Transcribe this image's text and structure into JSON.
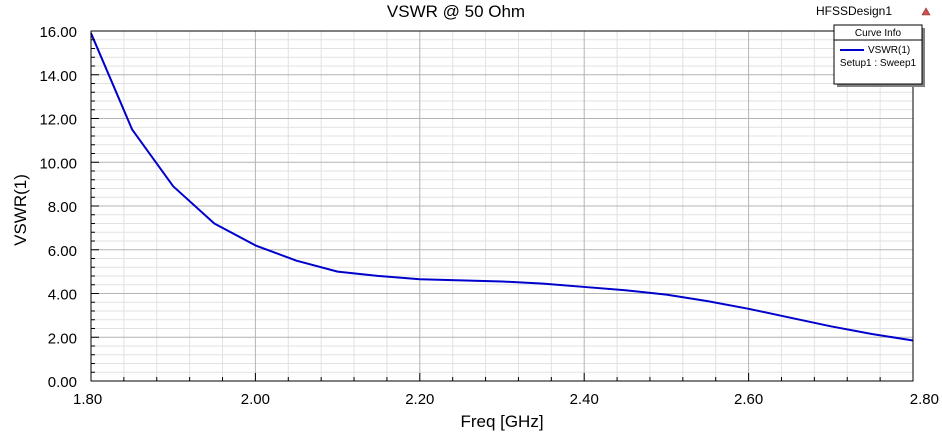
{
  "design_name": "HFSSDesign1",
  "chart_data": {
    "type": "line",
    "title": "VSWR @ 50 Ohm",
    "xlabel": "Freq [GHz]",
    "ylabel": "VSWR(1)",
    "xlim": [
      1.8,
      2.8
    ],
    "ylim": [
      0,
      16
    ],
    "x_ticks": [
      "1.80",
      "2.00",
      "2.20",
      "2.40",
      "2.60",
      "2.80"
    ],
    "y_ticks": [
      "0.00",
      "2.00",
      "4.00",
      "6.00",
      "8.00",
      "10.00",
      "12.00",
      "14.00",
      "16.00"
    ],
    "grid": true,
    "legend": {
      "title": "Curve Info",
      "placement": "top-right",
      "entries": [
        {
          "name": "VSWR(1)",
          "detail": "Setup1 : Sweep1",
          "color": "#0000cc"
        }
      ]
    },
    "series": [
      {
        "name": "VSWR(1)",
        "color": "#0000cc",
        "x": [
          1.8,
          1.85,
          1.9,
          1.95,
          2.0,
          2.05,
          2.1,
          2.15,
          2.2,
          2.25,
          2.3,
          2.35,
          2.4,
          2.45,
          2.5,
          2.55,
          2.6,
          2.65,
          2.7,
          2.75,
          2.8
        ],
        "y": [
          15.9,
          11.5,
          8.9,
          7.2,
          6.2,
          5.5,
          5.0,
          4.8,
          4.65,
          4.6,
          4.55,
          4.45,
          4.3,
          4.15,
          3.95,
          3.65,
          3.3,
          2.9,
          2.5,
          2.15,
          1.85
        ]
      }
    ]
  }
}
